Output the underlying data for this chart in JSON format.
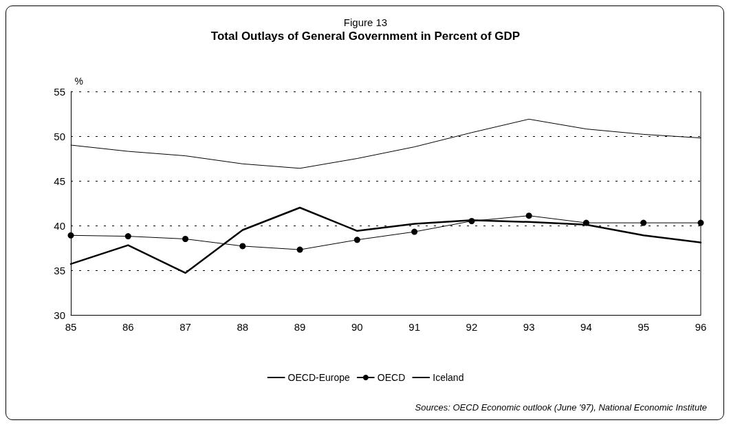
{
  "chart_data": {
    "type": "line",
    "title": "Figure 13",
    "subtitle": "Total Outlays of General Government in Percent of GDP",
    "ylabel": "%",
    "categories": [
      "85",
      "86",
      "87",
      "88",
      "89",
      "90",
      "91",
      "92",
      "93",
      "94",
      "95",
      "96"
    ],
    "series": [
      {
        "name": "OECD-Europe",
        "color": "#000000",
        "marker": "none",
        "values": [
          49.0,
          48.3,
          47.8,
          46.9,
          46.4,
          47.5,
          48.8,
          50.4,
          51.9,
          50.8,
          50.2,
          49.8
        ]
      },
      {
        "name": "OECD",
        "color": "#000000",
        "marker": "circle",
        "values": [
          38.9,
          38.8,
          38.5,
          37.7,
          37.3,
          38.4,
          39.3,
          40.5,
          41.1,
          40.3,
          40.3,
          40.3
        ]
      },
      {
        "name": "Iceland",
        "color": "#000000",
        "marker": "none",
        "values": [
          35.7,
          37.8,
          34.7,
          39.5,
          42.0,
          39.4,
          40.2,
          40.6,
          40.4,
          40.1,
          38.9,
          38.1
        ]
      }
    ],
    "ylim": [
      30,
      55
    ],
    "yticks": [
      30,
      35,
      40,
      45,
      50,
      55
    ],
    "grid": "y",
    "line_style": "solid",
    "legend": "bottom",
    "annotations": [
      "Sources: OECD Economic outlook (June '97), National Economic Institute"
    ]
  }
}
